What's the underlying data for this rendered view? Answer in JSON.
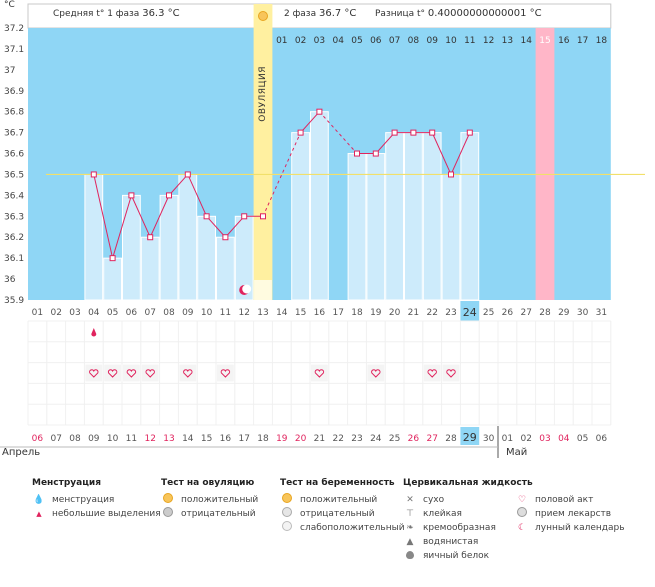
{
  "unit_label": "°C",
  "header": {
    "phase1_label": "Средняя t° 1 фаза",
    "phase1_value": "36.3 °C",
    "phase2_label": "2 фаза",
    "phase2_value": "36.7 °C",
    "diff_label": "Разница t°",
    "diff_value": "0.40000000000001 °C"
  },
  "ovulation_label": "ОВУЛЯЦИЯ",
  "colors": {
    "sky": "#8fd6f5",
    "cell": "#cdebfb",
    "ovulation": "#fff0a0",
    "pink": "#ffb6c8",
    "line": "#e0245e",
    "coverline": "#f2e06a",
    "highlight": "#8fd6f5"
  },
  "top_days": [
    "01",
    "02",
    "03",
    "04",
    "05",
    "06",
    "07",
    "08",
    "09",
    "10",
    "11",
    "12",
    "13",
    "14",
    "15",
    "16",
    "17",
    "18"
  ],
  "highlight_top_day": "15",
  "chart_data": {
    "type": "line",
    "ylabel": "°C",
    "ylim": [
      35.9,
      37.2
    ],
    "yticks": [
      "35.9",
      "36",
      "36.1",
      "36.2",
      "36.3",
      "36.4",
      "36.5",
      "36.6",
      "36.7",
      "36.8",
      "36.9",
      "37",
      "37.1",
      "37.2"
    ],
    "x": [
      "01",
      "02",
      "03",
      "04",
      "05",
      "06",
      "07",
      "08",
      "09",
      "10",
      "11",
      "12",
      "13",
      "14",
      "15",
      "16",
      "17",
      "18",
      "19",
      "20",
      "21",
      "22",
      "23",
      "24",
      "25",
      "26",
      "27",
      "28",
      "29",
      "30",
      "31"
    ],
    "temps": [
      null,
      null,
      null,
      36.5,
      36.1,
      36.4,
      36.2,
      36.4,
      36.5,
      36.3,
      36.2,
      36.3,
      36.3,
      null,
      36.7,
      36.8,
      null,
      36.6,
      36.6,
      36.7,
      36.7,
      36.7,
      36.5,
      36.7,
      null,
      null,
      null,
      null,
      null,
      null,
      null
    ],
    "coverline": 36.5,
    "ovulation_day": "13",
    "highlight_day": "24",
    "pink_day": "28"
  },
  "menstruation_day": "04",
  "heart_days": [
    "04",
    "05",
    "06",
    "07",
    "09",
    "11",
    "16",
    "19",
    "22",
    "23"
  ],
  "moon_day": "12",
  "bottom_dates": [
    "06",
    "07",
    "08",
    "09",
    "10",
    "11",
    "12",
    "13",
    "14",
    "15",
    "16",
    "17",
    "18",
    "19",
    "20",
    "21",
    "22",
    "23",
    "24",
    "25",
    "26",
    "27",
    "28",
    "29",
    "30",
    "01",
    "02",
    "03",
    "04",
    "05",
    "06"
  ],
  "bottom_red": [
    "06",
    "12",
    "13",
    "19",
    "20",
    "26",
    "27",
    "03",
    "04"
  ],
  "highlight_bottom_date": "29",
  "months": {
    "first": "Апрель",
    "second": "Май"
  },
  "legend": {
    "menstruation": {
      "title": "Менструация",
      "items": [
        "менструация",
        "небольшие выделения"
      ]
    },
    "ovulation_test": {
      "title": "Тест на овуляцию",
      "items": [
        "положительный",
        "отрицательный"
      ]
    },
    "pregnancy_test": {
      "title": "Тест на беременность",
      "items": [
        "положительный",
        "отрицательный",
        "слабоположительный"
      ]
    },
    "cervical": {
      "title": "Цервикальная жидкость",
      "items": [
        "сухо",
        "клейкая",
        "кремообразная",
        "водянистая",
        "яичный белок"
      ]
    },
    "other": {
      "items": [
        "половой акт",
        "прием лекарств",
        "лунный календарь"
      ]
    }
  }
}
